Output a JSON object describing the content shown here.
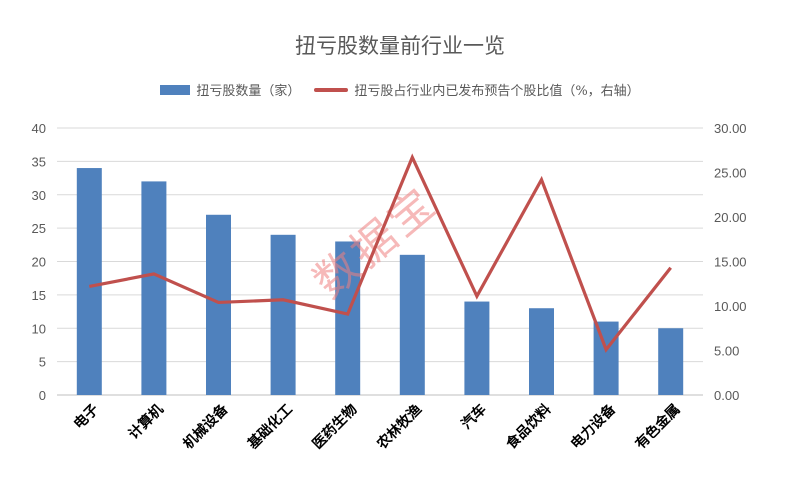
{
  "chart_data": {
    "type": "bar+line",
    "title": "扭亏股数量前行业一览",
    "categories": [
      "电子",
      "计算机",
      "机械设备",
      "基础化工",
      "医药生物",
      "农林牧渔",
      "汽车",
      "食品饮料",
      "电力设备",
      "有色金属"
    ],
    "series": [
      {
        "name": "扭亏股数量（家）",
        "type": "bar",
        "axis": "left",
        "color": "#4f81bd",
        "values": [
          34,
          32,
          27,
          24,
          23,
          21,
          14,
          13,
          11,
          10
        ]
      },
      {
        "name": "扭亏股占行业内已发布预告个股比值（%，右轴）",
        "type": "line",
        "axis": "right",
        "color": "#c0504d",
        "values": [
          12.2,
          13.6,
          10.4,
          10.7,
          9.1,
          26.7,
          11.1,
          24.2,
          5.1,
          14.3
        ]
      }
    ],
    "left_axis": {
      "min": 0,
      "max": 40,
      "step": 5,
      "ticks": [
        "0",
        "5",
        "10",
        "15",
        "20",
        "25",
        "30",
        "35",
        "40"
      ]
    },
    "right_axis": {
      "min": 0,
      "max": 30,
      "step": 5,
      "ticks": [
        "0.00",
        "5.00",
        "10.00",
        "15.00",
        "20.00",
        "25.00",
        "30.00"
      ]
    },
    "grid": true,
    "legend_position": "top",
    "watermark": "数据宝"
  }
}
